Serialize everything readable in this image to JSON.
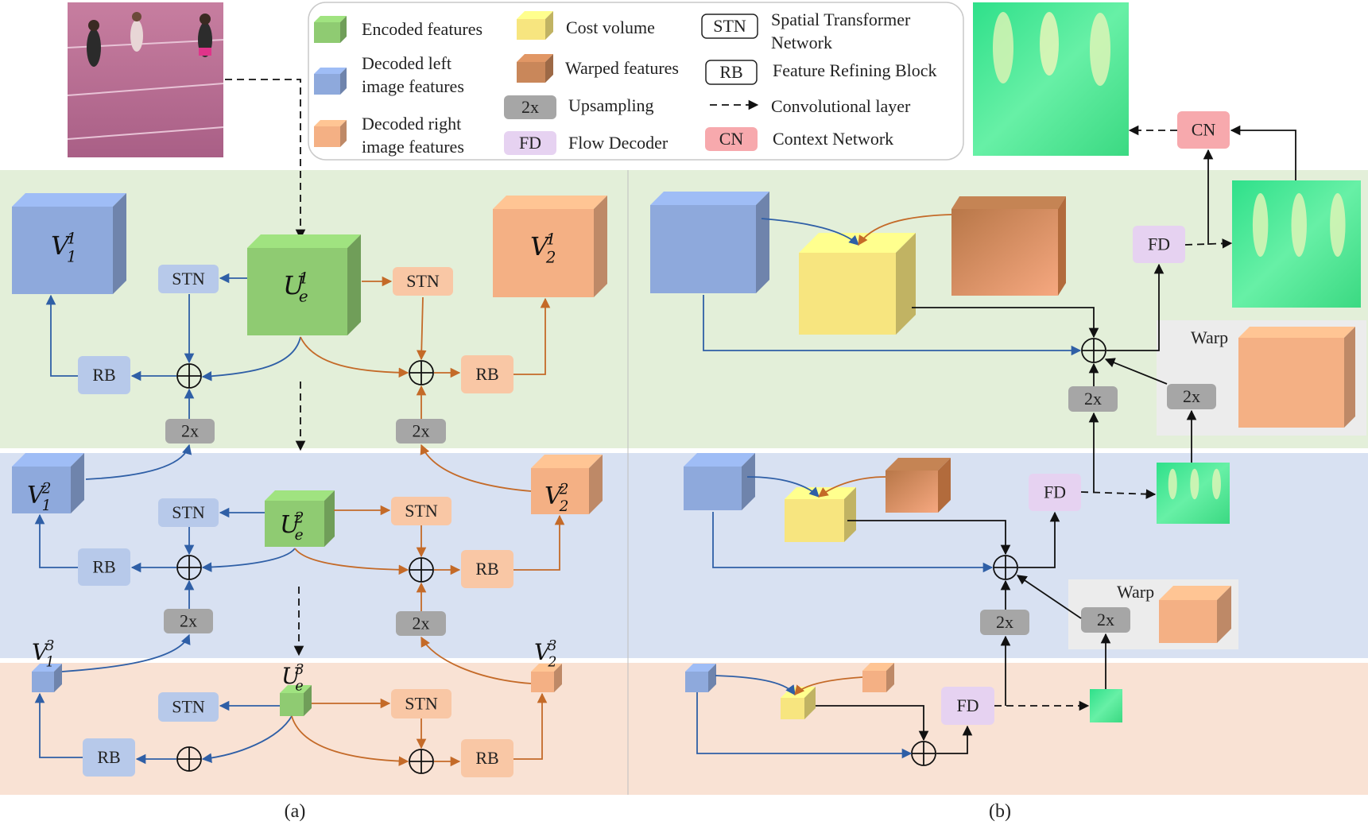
{
  "legend": {
    "encoded": "Encoded features",
    "decoded_left_1": "Decoded left",
    "decoded_left_2": "image features",
    "decoded_right_1": "Decoded right",
    "decoded_right_2": "image features",
    "cost_volume": "Cost volume",
    "warped": "Warped features",
    "upsampling": "Upsampling",
    "flow_decoder": "Flow Decoder",
    "stn_1": "Spatial Transformer",
    "stn_2": "Network",
    "rb_desc": "Feature Refining Block",
    "conv": "Convolutional layer",
    "cn_desc": "Context Network"
  },
  "tags": {
    "stn": "STN",
    "rb": "RB",
    "up": "2x",
    "fd": "FD",
    "cn": "CN",
    "warp": "Warp"
  },
  "math": {
    "V": "V",
    "U": "U",
    "sub1": "1",
    "sub2": "2",
    "sube": "e",
    "sup1": "1",
    "sup2": "2",
    "sup3": "3"
  },
  "captions": {
    "a": "(a)",
    "b": "(b)"
  },
  "colors": {
    "green_bg": "#e3efd9",
    "blue_bg": "#d8e1f2",
    "peach_bg": "#f9e2d4",
    "encoded": "#8fcb72",
    "left": "#8ea9dc",
    "right": "#f4b084",
    "cost": "#f7e57f",
    "warped": "#d99566",
    "up": "#a6a6a6",
    "fd": "#e6d2f1",
    "cn": "#f7a9ad",
    "stn_left": "#b7c9ea",
    "stn_right": "#f9c7a5",
    "arrow_left": "#2f5fa6",
    "arrow_right": "#c46a28",
    "flow": "#3ddf8a"
  }
}
